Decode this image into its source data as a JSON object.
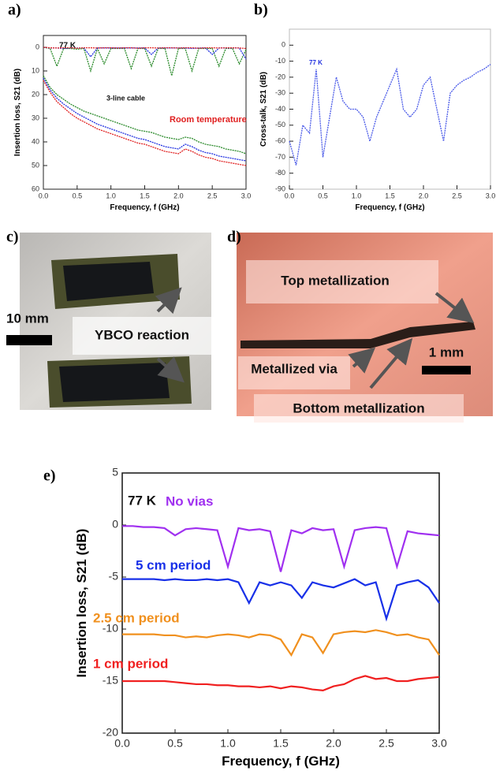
{
  "chart_data": [
    {
      "type": "line",
      "label": "a)",
      "xlabel": "Frequency, f (GHz)",
      "ylabel": "Insertion loss, S21 (dB)",
      "annotations": [
        "77 K",
        "3-line cable",
        "Room temperature"
      ],
      "xlim": [
        0,
        3
      ],
      "ylim": [
        60,
        -5
      ],
      "xticks": [
        {
          "value": 0,
          "label": "0.0"
        },
        {
          "value": 0.5,
          "label": "0.5"
        },
        {
          "value": 1,
          "label": "1.0"
        },
        {
          "value": 1.5,
          "label": "1.5"
        },
        {
          "value": 2,
          "label": "2.0"
        },
        {
          "value": 2.5,
          "label": "2.5"
        },
        {
          "value": 3,
          "label": "3.0"
        }
      ],
      "yticks": [
        0,
        10,
        20,
        30,
        40,
        50,
        60
      ],
      "x": [
        0,
        0.1,
        0.2,
        0.3,
        0.4,
        0.5,
        0.6,
        0.7,
        0.8,
        0.9,
        1,
        1.1,
        1.2,
        1.3,
        1.4,
        1.5,
        1.6,
        1.7,
        1.8,
        1.9,
        2,
        2.1,
        2.2,
        2.3,
        2.4,
        2.5,
        2.6,
        2.7,
        2.8,
        2.9,
        3
      ],
      "series": [
        {
          "color": "#2a8a2a",
          "values": [
            0,
            0.5,
            8,
            0.5,
            0.5,
            0.8,
            0.5,
            10,
            0.5,
            7,
            0.5,
            0.5,
            0.5,
            9,
            0.5,
            0.5,
            8,
            0.5,
            0.5,
            12,
            0.5,
            0.5,
            10,
            0.5,
            0.5,
            0.5,
            8,
            0.5,
            0.5,
            7,
            1
          ]
        },
        {
          "color": "#2030e0",
          "values": [
            0,
            0.3,
            0.3,
            0.5,
            0.3,
            0.3,
            0.3,
            4,
            0.3,
            0.3,
            0.3,
            0.3,
            0.3,
            0.3,
            0.3,
            0.3,
            3,
            0.3,
            0.3,
            0.3,
            0.3,
            0.3,
            0.5,
            0.3,
            0.3,
            3,
            0.3,
            0.3,
            0.3,
            0.3,
            5
          ]
        },
        {
          "color": "#e02020",
          "values": [
            0,
            0.2,
            0.3,
            0.2,
            0.2,
            0.4,
            0.2,
            0.2,
            0.3,
            0.2,
            0.2,
            0.3,
            0.2,
            0.2,
            0.4,
            0.2,
            0.2,
            0.3,
            0.2,
            0.2,
            0.3,
            0.2,
            0.2,
            0.4,
            0.2,
            0.2,
            0.3,
            0.2,
            0.2,
            0.3,
            0.5
          ]
        },
        {
          "color": "#2a8a2a",
          "values": [
            12,
            17,
            20,
            22,
            24,
            25.5,
            27,
            28,
            29,
            30,
            31,
            32,
            33,
            34,
            35,
            35.5,
            36,
            37,
            38,
            38.5,
            39,
            38,
            38.5,
            40,
            41,
            41.5,
            42,
            43,
            43.5,
            44,
            45
          ]
        },
        {
          "color": "#2030e0",
          "values": [
            13,
            18,
            21.5,
            24,
            26,
            28,
            29.5,
            31,
            32.5,
            33.5,
            34.5,
            35.5,
            36.5,
            37.5,
            38.5,
            39,
            40,
            41,
            42,
            42.5,
            43,
            41,
            42,
            43.5,
            44.5,
            45,
            46,
            46.5,
            47,
            47.5,
            48
          ]
        },
        {
          "color": "#e02020",
          "values": [
            14,
            19,
            23,
            25.5,
            28,
            30,
            31.5,
            33,
            34.5,
            35.5,
            36.5,
            37.5,
            38.5,
            39.5,
            40.5,
            41,
            42,
            43,
            44,
            44.5,
            45,
            43,
            44,
            45.5,
            46.5,
            47,
            48,
            48.5,
            49,
            49.5,
            50
          ]
        }
      ]
    },
    {
      "type": "line",
      "label": "b)",
      "xlabel": "Frequency, f (GHz)",
      "ylabel": "Cross-talk, S21 (dB)",
      "annotations": [
        "77 K"
      ],
      "xlim": [
        0,
        3
      ],
      "ylim": [
        -90,
        10
      ],
      "xticks": [
        {
          "value": 0,
          "label": "0.0"
        },
        {
          "value": 0.5,
          "label": "0.5"
        },
        {
          "value": 1,
          "label": "1.0"
        },
        {
          "value": 1.5,
          "label": "1.5"
        },
        {
          "value": 2,
          "label": "2.0"
        },
        {
          "value": 2.5,
          "label": "2.5"
        },
        {
          "value": 3,
          "label": "3.0"
        }
      ],
      "yticks": [
        0,
        -10,
        -20,
        -30,
        -40,
        -50,
        -60,
        -70,
        -80,
        -90
      ],
      "x": [
        0,
        0.1,
        0.2,
        0.3,
        0.4,
        0.5,
        0.6,
        0.7,
        0.8,
        0.9,
        1,
        1.1,
        1.2,
        1.3,
        1.4,
        1.5,
        1.6,
        1.7,
        1.8,
        1.9,
        2,
        2.1,
        2.2,
        2.3,
        2.4,
        2.5,
        2.6,
        2.7,
        2.8,
        2.9,
        3
      ],
      "series": [
        {
          "color": "#4a5ae8",
          "values": [
            -60,
            -75,
            -50,
            -55,
            -15,
            -70,
            -45,
            -20,
            -35,
            -40,
            -40,
            -45,
            -60,
            -45,
            -35,
            -25,
            -15,
            -40,
            -45,
            -40,
            -25,
            -20,
            -40,
            -60,
            -30,
            -25,
            -22,
            -20,
            -17,
            -15,
            -12
          ]
        }
      ]
    },
    {
      "type": "line",
      "label": "e)",
      "xlabel": "Frequency, f (GHz)",
      "ylabel": "Insertion loss, S21 (dB)",
      "annotations": [
        "77 K"
      ],
      "xlim": [
        0,
        3
      ],
      "ylim": [
        -20,
        5
      ],
      "xticks": [
        {
          "value": 0,
          "label": "0.0"
        },
        {
          "value": 0.5,
          "label": "0.5"
        },
        {
          "value": 1,
          "label": "1.0"
        },
        {
          "value": 1.5,
          "label": "1.5"
        },
        {
          "value": 2,
          "label": "2.0"
        },
        {
          "value": 2.5,
          "label": "2.5"
        },
        {
          "value": 3,
          "label": "3.0"
        }
      ],
      "yticks": [
        5,
        0,
        -5,
        -10,
        -15,
        -20
      ],
      "x": [
        0,
        0.1,
        0.2,
        0.3,
        0.4,
        0.5,
        0.6,
        0.7,
        0.8,
        0.9,
        1,
        1.1,
        1.2,
        1.3,
        1.4,
        1.5,
        1.6,
        1.7,
        1.8,
        1.9,
        2,
        2.1,
        2.2,
        2.3,
        2.4,
        2.5,
        2.6,
        2.7,
        2.8,
        2.9,
        3
      ],
      "series": [
        {
          "name": "No vias",
          "color": "#a030f0",
          "values": [
            -0.1,
            -0.1,
            -0.2,
            -0.2,
            -0.3,
            -1,
            -0.4,
            -0.3,
            -0.4,
            -0.5,
            -4,
            -0.3,
            -0.5,
            -0.4,
            -0.6,
            -4.5,
            -0.5,
            -0.8,
            -0.3,
            -0.5,
            -0.4,
            -4,
            -0.5,
            -0.3,
            -0.2,
            -0.3,
            -4,
            -0.6,
            -0.8,
            -0.9,
            -1
          ]
        },
        {
          "name": "5 cm period",
          "color": "#1830e8",
          "values": [
            -5.2,
            -5.2,
            -5.2,
            -5.2,
            -5.3,
            -5.2,
            -5.3,
            -5.3,
            -5.2,
            -5.3,
            -5.2,
            -5.5,
            -7.5,
            -5.5,
            -5.8,
            -5.5,
            -5.8,
            -7,
            -5.5,
            -5.8,
            -6,
            -5.6,
            -5.2,
            -5.8,
            -5.5,
            -9,
            -5.8,
            -5.5,
            -5.3,
            -6,
            -7.5
          ]
        },
        {
          "name": "2.5 cm period",
          "color": "#f0901e",
          "values": [
            -10.5,
            -10.5,
            -10.5,
            -10.5,
            -10.6,
            -10.6,
            -10.8,
            -10.7,
            -10.8,
            -10.6,
            -10.5,
            -10.6,
            -10.8,
            -10.5,
            -10.6,
            -11,
            -12.5,
            -10.5,
            -10.8,
            -12.3,
            -10.5,
            -10.3,
            -10.2,
            -10.3,
            -10.1,
            -10.3,
            -10.6,
            -10.5,
            -10.8,
            -11,
            -12.5
          ]
        },
        {
          "name": "1 cm period",
          "color": "#f02020",
          "values": [
            -15,
            -15,
            -15,
            -15,
            -15,
            -15.1,
            -15.2,
            -15.3,
            -15.3,
            -15.4,
            -15.4,
            -15.5,
            -15.5,
            -15.6,
            -15.5,
            -15.7,
            -15.5,
            -15.6,
            -15.8,
            -15.9,
            -15.5,
            -15.3,
            -14.8,
            -14.5,
            -14.8,
            -14.7,
            -15,
            -15,
            -14.8,
            -14.7,
            -14.6
          ]
        }
      ]
    }
  ],
  "photos": [
    {
      "label": "c)",
      "texts": [
        "10 mm",
        "YBCO reaction"
      ]
    },
    {
      "label": "d)",
      "texts": [
        "Top metallization",
        "1 mm",
        "Metallized via",
        "Bottom metallization"
      ]
    }
  ]
}
